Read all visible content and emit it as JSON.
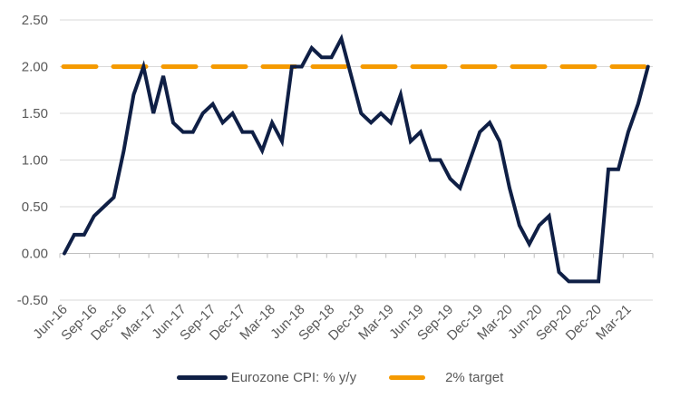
{
  "chart_data": {
    "type": "line",
    "title": "",
    "xlabel": "",
    "ylabel": "",
    "ylim": [
      -0.5,
      2.5
    ],
    "yticks": [
      "2.50",
      "2.00",
      "1.50",
      "1.00",
      "0.50",
      "0.00",
      "-0.50"
    ],
    "ytick_values": [
      2.5,
      2.0,
      1.5,
      1.0,
      0.5,
      0.0,
      -0.5
    ],
    "xtick_labels": [
      "Jun-16",
      "Sep-16",
      "Dec-16",
      "Mar-17",
      "Jun-17",
      "Sep-17",
      "Dec-17",
      "Mar-18",
      "Jun-18",
      "Sep-18",
      "Dec-18",
      "Mar-19",
      "Jun-19",
      "Sep-19",
      "Dec-19",
      "Mar-20",
      "Jun-20",
      "Sep-20",
      "Dec-20",
      "Mar-21"
    ],
    "x": [
      "Jun-16",
      "Jul-16",
      "Aug-16",
      "Sep-16",
      "Oct-16",
      "Nov-16",
      "Dec-16",
      "Jan-17",
      "Feb-17",
      "Mar-17",
      "Apr-17",
      "May-17",
      "Jun-17",
      "Jul-17",
      "Aug-17",
      "Sep-17",
      "Oct-17",
      "Nov-17",
      "Dec-17",
      "Jan-18",
      "Feb-18",
      "Mar-18",
      "Apr-18",
      "May-18",
      "Jun-18",
      "Jul-18",
      "Aug-18",
      "Sep-18",
      "Oct-18",
      "Nov-18",
      "Dec-18",
      "Jan-19",
      "Feb-19",
      "Mar-19",
      "Apr-19",
      "May-19",
      "Jun-19",
      "Jul-19",
      "Aug-19",
      "Sep-19",
      "Oct-19",
      "Nov-19",
      "Dec-19",
      "Jan-20",
      "Feb-20",
      "Mar-20",
      "Apr-20",
      "May-20",
      "Jun-20",
      "Jul-20",
      "Aug-20",
      "Sep-20",
      "Oct-20",
      "Nov-20",
      "Dec-20",
      "Jan-21",
      "Feb-21",
      "Mar-21",
      "Apr-21",
      "May-21"
    ],
    "series": [
      {
        "name": "Eurozone CPI: % y/y",
        "color": "#0f1f45",
        "style": "solid",
        "values": [
          0.0,
          0.2,
          0.2,
          0.4,
          0.5,
          0.6,
          1.1,
          1.7,
          2.0,
          1.5,
          1.9,
          1.4,
          1.3,
          1.3,
          1.5,
          1.6,
          1.4,
          1.5,
          1.3,
          1.3,
          1.1,
          1.4,
          1.2,
          2.0,
          2.0,
          2.2,
          2.1,
          2.1,
          2.3,
          1.9,
          1.5,
          1.4,
          1.5,
          1.4,
          1.7,
          1.2,
          1.3,
          1.0,
          1.0,
          0.8,
          0.7,
          1.0,
          1.3,
          1.4,
          1.2,
          0.7,
          0.3,
          0.1,
          0.3,
          0.4,
          -0.2,
          -0.3,
          -0.3,
          -0.3,
          -0.3,
          0.9,
          0.9,
          1.3,
          1.6,
          2.0
        ]
      },
      {
        "name": "2% target",
        "color": "#f59a00",
        "style": "dashed",
        "values": [
          2.0,
          2.0
        ]
      }
    ],
    "grid": true,
    "legend": "bottom-center"
  },
  "legend": {
    "items": [
      {
        "label": "Eurozone CPI: % y/y",
        "color": "#0f1f45"
      },
      {
        "label": "2% target",
        "color": "#f59a00"
      }
    ]
  }
}
